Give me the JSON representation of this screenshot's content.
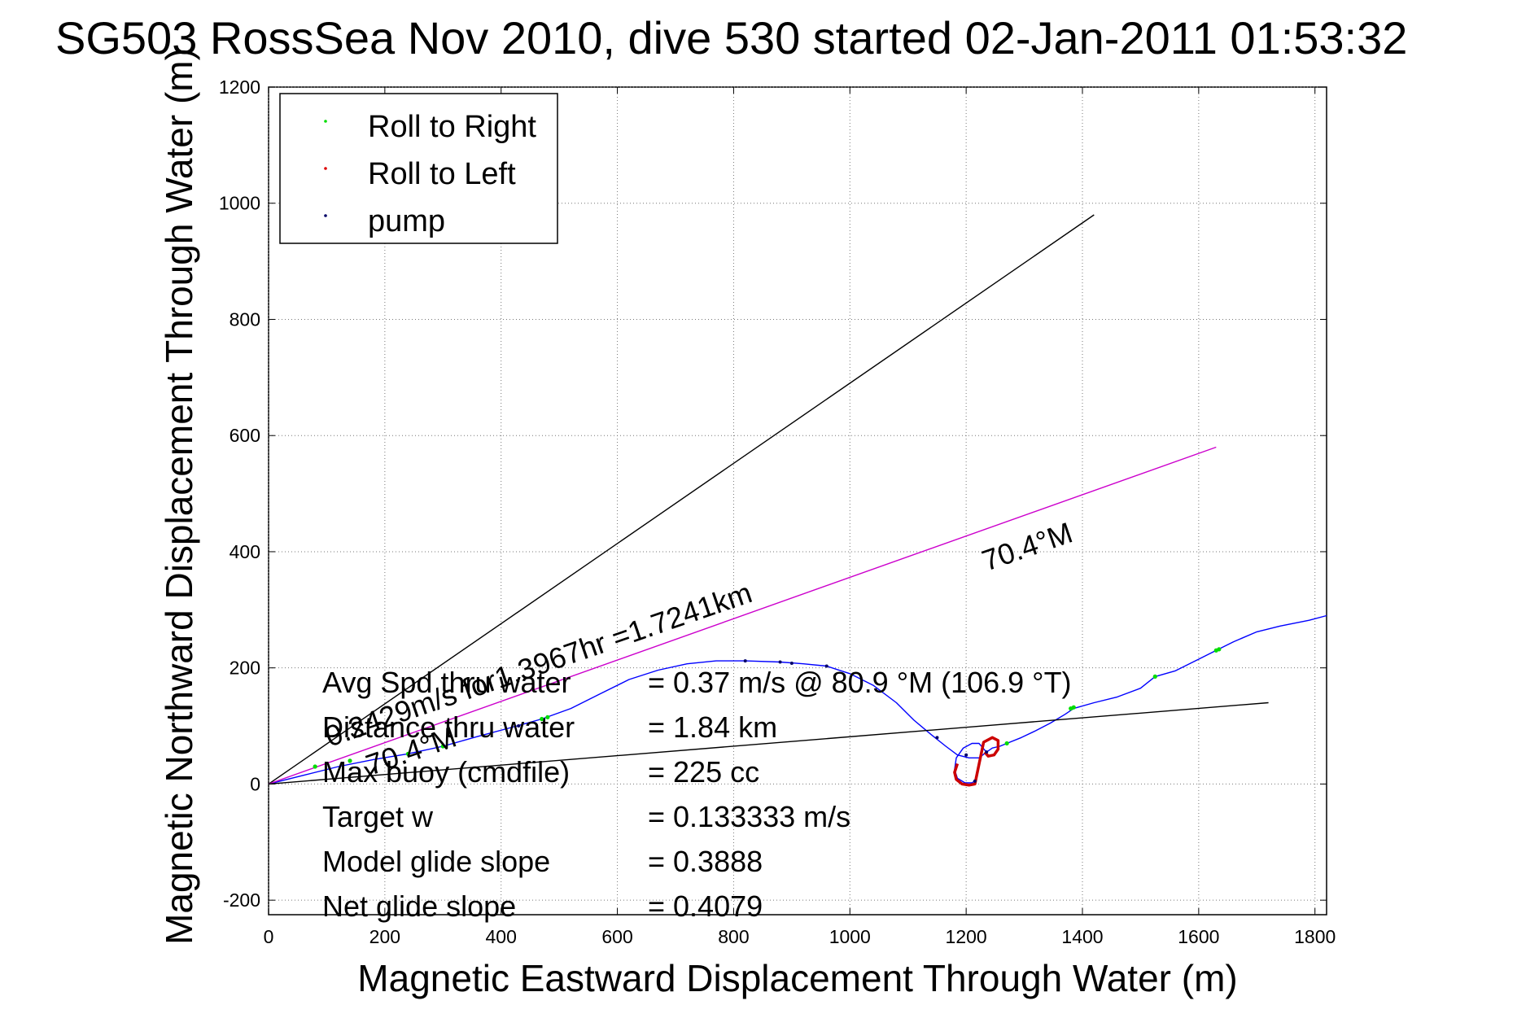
{
  "chart_data": {
    "type": "line",
    "title": "SG503 RossSea Nov 2010, dive 530 started 02-Jan-2011 01:53:32",
    "xlabel": "Magnetic Eastward Displacement Through Water (m)",
    "ylabel": "Magnetic Northward Displacement Through Water (m)",
    "xlim": [
      0,
      1820
    ],
    "ylim": [
      -225,
      1200
    ],
    "xticks": [
      0,
      200,
      400,
      600,
      800,
      1000,
      1200,
      1400,
      1600,
      1800
    ],
    "yticks": [
      -200,
      0,
      200,
      400,
      600,
      800,
      1000,
      1200
    ],
    "grid": true,
    "legend_position": "top-left",
    "legend": [
      {
        "label": "Roll to Right",
        "color": "#00dd00"
      },
      {
        "label": "Roll to Left",
        "color": "#dd0000"
      },
      {
        "label": "pump",
        "color": "#000066"
      }
    ],
    "series": [
      {
        "name": "track",
        "color": "#0000ff",
        "x": [
          0,
          60,
          120,
          180,
          240,
          300,
          360,
          420,
          470,
          520,
          570,
          620,
          670,
          720,
          770,
          820,
          880,
          920,
          960,
          1000,
          1040,
          1080,
          1110,
          1140,
          1165,
          1185,
          1205,
          1222,
          1235,
          1245,
          1258,
          1270,
          1295,
          1320,
          1345,
          1370,
          1385,
          1420,
          1460,
          1500,
          1525,
          1560,
          1600,
          1630,
          1660,
          1700,
          1740,
          1790,
          1820
        ],
        "y": [
          0,
          15,
          30,
          42,
          52,
          65,
          82,
          98,
          112,
          130,
          155,
          180,
          196,
          207,
          212,
          212,
          210,
          207,
          203,
          190,
          170,
          140,
          110,
          85,
          65,
          50,
          45,
          45,
          55,
          62,
          65,
          70,
          80,
          92,
          105,
          120,
          130,
          140,
          150,
          165,
          185,
          195,
          215,
          230,
          245,
          262,
          272,
          282,
          290
        ]
      },
      {
        "name": "loop",
        "color": "#0000ff",
        "x": [
          1235,
          1222,
          1210,
          1195,
          1183,
          1180,
          1185,
          1198,
          1210,
          1218
        ],
        "y": [
          55,
          70,
          70,
          62,
          45,
          25,
          10,
          2,
          2,
          8
        ]
      },
      {
        "name": "roll_left",
        "color": "#cc0000",
        "x": [
          1185,
          1180,
          1183,
          1193,
          1205,
          1215,
          1230,
          1245,
          1255,
          1255,
          1248,
          1238,
          1232
        ],
        "y": [
          35,
          20,
          8,
          0,
          -2,
          0,
          72,
          80,
          75,
          60,
          50,
          48,
          55
        ]
      },
      {
        "name": "heading_line_black_upper",
        "color": "#000000",
        "x": [
          0,
          1420
        ],
        "y": [
          0,
          980
        ]
      },
      {
        "name": "heading_line_magenta",
        "color": "#cc00cc",
        "x": [
          0,
          1630
        ],
        "y": [
          0,
          580
        ]
      },
      {
        "name": "heading_line_black_lower",
        "color": "#000000",
        "x": [
          0,
          1720
        ],
        "y": [
          0,
          140
        ]
      }
    ],
    "roll_right_points": {
      "x": [
        80,
        140,
        240,
        300,
        470,
        480,
        1270,
        1380,
        1385,
        1525,
        1630,
        1635
      ],
      "y": [
        30,
        40,
        52,
        65,
        112,
        115,
        70,
        130,
        132,
        185,
        230,
        232
      ]
    },
    "pump_points": {
      "x": [
        430,
        820,
        880,
        900,
        960,
        1150,
        1200,
        1215,
        1235
      ],
      "y": [
        100,
        212,
        210,
        208,
        203,
        80,
        50,
        5,
        55
      ]
    },
    "annotations": {
      "heading_upper": "70.4°M",
      "speed_line": "0.2429m/s for1.3967hr =1.7241km",
      "heading_lower": "70.4°M"
    },
    "stats": [
      {
        "label": "Avg Spd thru water",
        "value": "=  0.37 m/s @  80.9 °M (106.9 °T)"
      },
      {
        "label": "Distance thru water",
        "value": "=  1.84 km"
      },
      {
        "label": "Max buoy (cmdfile)",
        "value": "= 225 cc"
      },
      {
        "label": "Target w",
        "value": "= 0.133333 m/s"
      },
      {
        "label": "Model glide slope",
        "value": "= 0.3888"
      },
      {
        "label": "Net glide slope",
        "value": "= 0.4079"
      }
    ]
  }
}
